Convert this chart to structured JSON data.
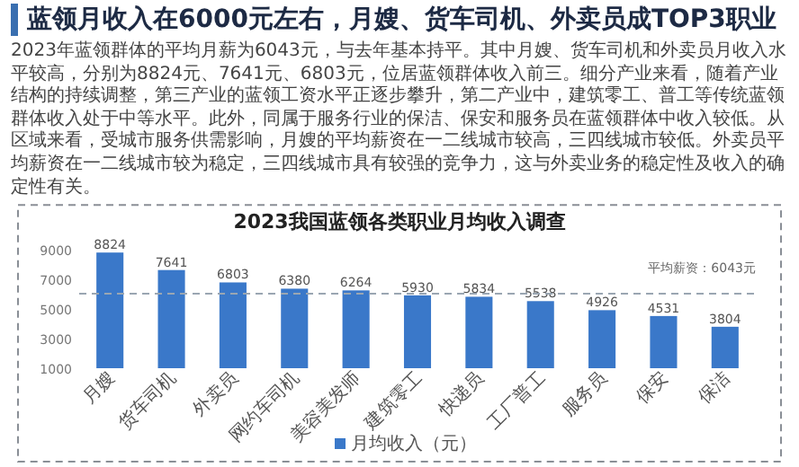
{
  "chart_data": {
    "type": "bar",
    "title": "2023我国蓝领各类职业月均收入调查",
    "annotations": [
      "蓝领月收入在6000元左右，月嫂、货车司机、外卖员成TOP3职业",
      "2023年蓝领群体的平均月薪为6043元，与去年基本持平。其中月嫂、货车司机和外卖员月收入水平较高，分别为8824元、7641元、6803元，位居蓝领群体收入前三。细分产业来看，随着产业结构的持续调整，第三产业的蓝领工资水平正逐步攀升，第二产业中，建筑零工、普工等传统蓝领群体收入处于中等水平。此外，同属于服务行业的保洁、保安和服务员在蓝领群体中收入较低。从区域来看，受城市服务供需影响，月嫂的平均薪资在一二线城市较高，三四线城市较低。外卖员平均薪资在一二线城市较为稳定，三四线城市具有较强的竞争力，这与外卖业务的稳定性及收入的确定性有关。"
    ],
    "categories": [
      "月嫂",
      "货车司机",
      "外卖员",
      "网约车司机",
      "美容美发师",
      "建筑零工",
      "快递员",
      "工厂普工",
      "服务员",
      "保安",
      "保洁"
    ],
    "series": [
      {
        "name": "月均收入（元）",
        "color": "#3a78c9",
        "values": [
          8824,
          7641,
          6803,
          6380,
          6264,
          5930,
          5834,
          5538,
          4926,
          4531,
          3804
        ]
      }
    ],
    "ylim": [
      1000,
      9000
    ],
    "yticks": [
      1000,
      3000,
      5000,
      7000,
      9000
    ],
    "ref_lines": [
      {
        "axis": "y",
        "value": 6043,
        "label": "平均薪资：6043元",
        "color": "#9aa6b2",
        "line_style": "dashed"
      }
    ],
    "data_labels": true,
    "legend": "bottom",
    "grid": false
  }
}
